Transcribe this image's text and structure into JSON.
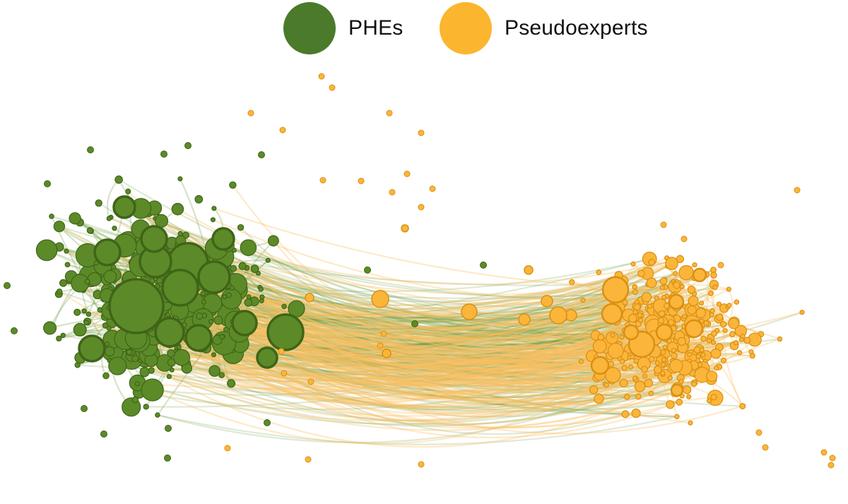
{
  "legend": {
    "items": [
      {
        "key": "phe",
        "label": "PHEs",
        "color": "#4a7a2a"
      },
      {
        "key": "pseudo",
        "label": "Pseudoexperts",
        "color": "#fcb52e"
      }
    ]
  },
  "network": {
    "groups": {
      "phe": {
        "fill": "#5c8a28",
        "stroke": "#3f6418",
        "edge": "#6e9a3c"
      },
      "pseudo": {
        "fill": "#fbb53a",
        "stroke": "#d98f12",
        "edge": "#fbc160"
      }
    }
  }
}
